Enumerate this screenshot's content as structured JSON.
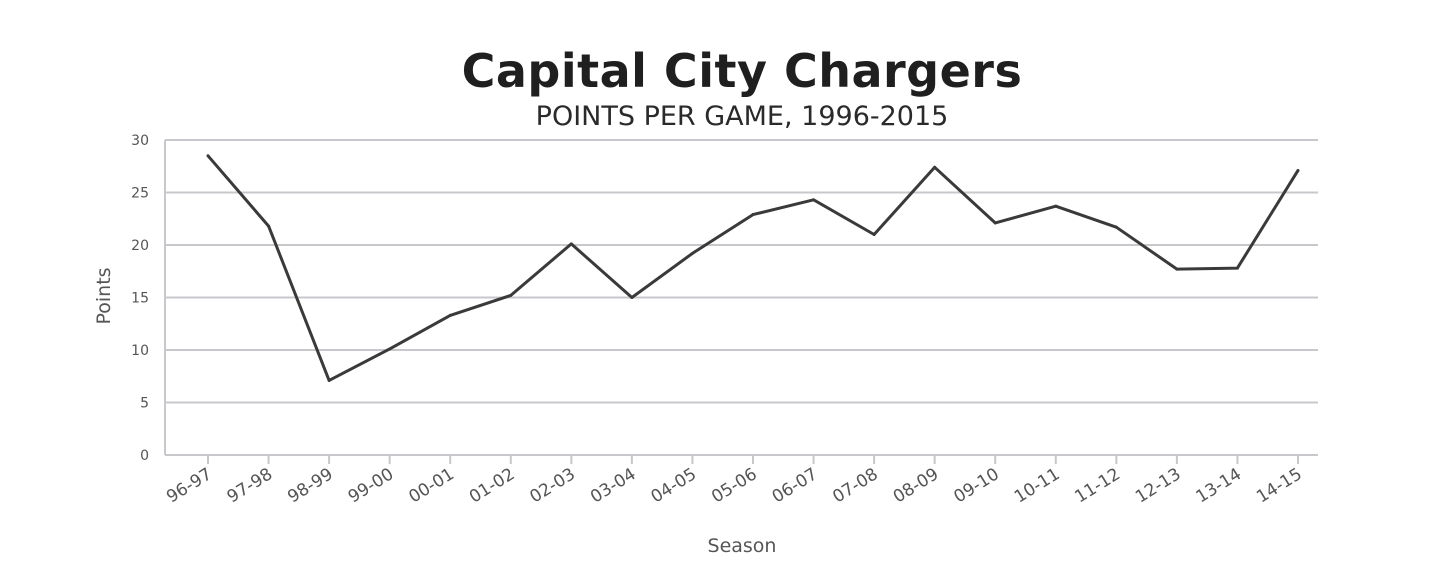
{
  "chart_data": {
    "type": "line",
    "title": "Capital City Chargers",
    "subtitle": "POINTS PER GAME, 1996-2015",
    "xlabel": "Season",
    "ylabel": "Points",
    "ylim": [
      0,
      30
    ],
    "yticks": [
      0,
      5,
      10,
      15,
      20,
      25,
      30
    ],
    "grid": true,
    "categories": [
      "96-97",
      "97-98",
      "98-99",
      "99-00",
      "00-01",
      "01-02",
      "02-03",
      "03-04",
      "04-05",
      "05-06",
      "06-07",
      "07-08",
      "08-09",
      "09-10",
      "10-11",
      "11-12",
      "12-13",
      "13-14",
      "14-15"
    ],
    "series": [
      {
        "values": [
          28.5,
          21.8,
          7.1,
          10.1,
          13.3,
          15.2,
          20.1,
          15.0,
          19.2,
          22.9,
          24.3,
          21.0,
          27.4,
          22.1,
          23.7,
          21.7,
          17.7,
          17.8,
          27.1
        ]
      }
    ],
    "colors": {
      "line": "#3a3a3a",
      "grid": "#c8c8cc",
      "text": "#555555"
    }
  }
}
